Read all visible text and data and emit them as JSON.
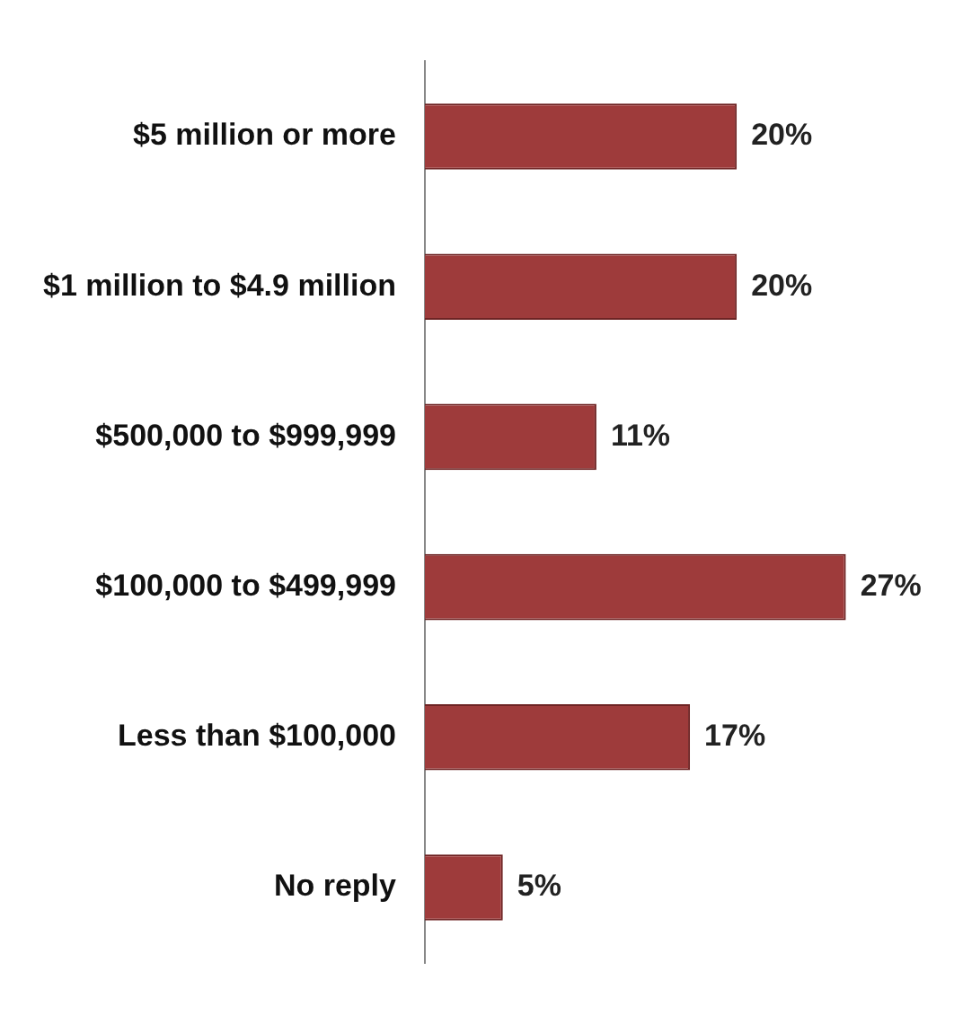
{
  "chart_data": {
    "type": "bar",
    "orientation": "horizontal",
    "categories": [
      "$5 million or more",
      "$1 million to $4.9 million",
      "$500,000 to $999,999",
      "$100,000 to $499,999",
      "Less than $100,000",
      "No reply"
    ],
    "values": [
      20,
      20,
      11,
      27,
      17,
      5
    ],
    "value_labels": [
      "20%",
      "20%",
      "11%",
      "27%",
      "17%",
      "5%"
    ],
    "color": "#9e3b3b"
  }
}
